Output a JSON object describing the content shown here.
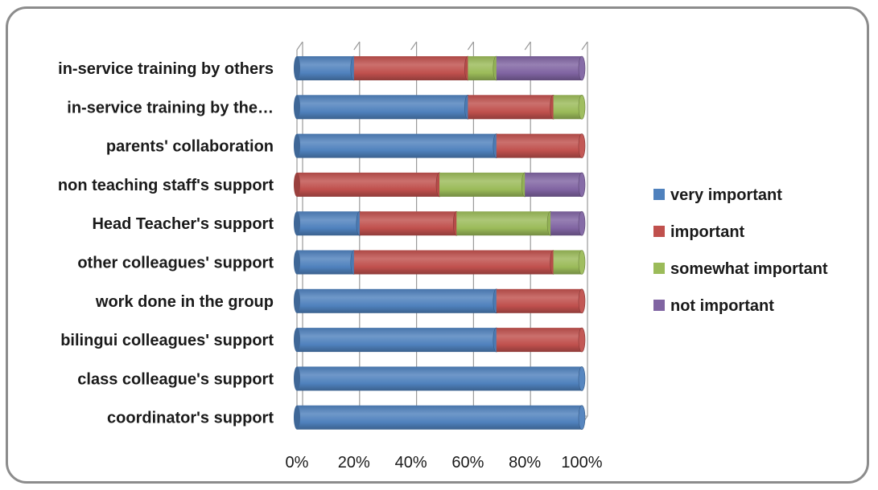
{
  "chart_data": {
    "type": "bar",
    "orientation": "horizontal",
    "stacked": "percent",
    "categories": [
      "in-service training by others",
      "in-service training by the…",
      "parents' collaboration",
      "non teaching staff's support",
      "Head Teacher's support",
      "other colleagues' support",
      "work done in the group",
      "bilingui colleagues' support",
      "class colleague's support",
      "coordinator's support"
    ],
    "series": [
      {
        "name": "very important",
        "color": "#4f81bd",
        "values": [
          20,
          60,
          70,
          0,
          22,
          20,
          70,
          70,
          100,
          100
        ]
      },
      {
        "name": "important",
        "color": "#c0504d",
        "values": [
          40,
          30,
          30,
          50,
          34,
          70,
          30,
          30,
          0,
          0
        ]
      },
      {
        "name": "somewhat important",
        "color": "#9bbb59",
        "values": [
          10,
          10,
          0,
          30,
          33,
          10,
          0,
          0,
          0,
          0
        ]
      },
      {
        "name": "not important",
        "color": "#8064a2",
        "values": [
          30,
          0,
          0,
          20,
          11,
          0,
          0,
          0,
          0,
          0
        ]
      }
    ],
    "x_ticks": [
      "0%",
      "20%",
      "40%",
      "60%",
      "80%",
      "100%"
    ],
    "xlim": [
      0,
      100
    ],
    "grid": true,
    "legend_position": "right",
    "title": "",
    "xlabel": "",
    "ylabel": ""
  }
}
